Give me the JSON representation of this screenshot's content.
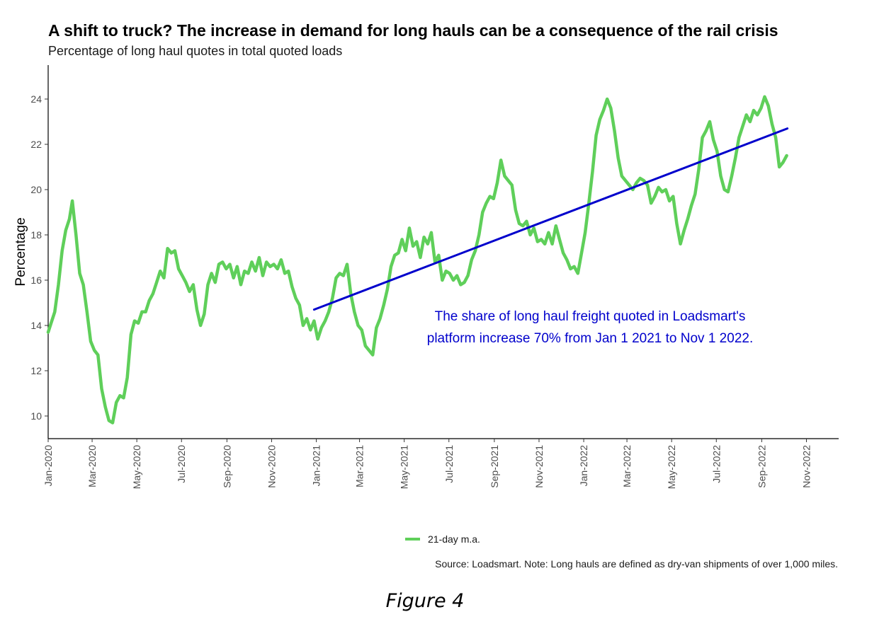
{
  "chart_data": {
    "type": "line",
    "title": "A shift to truck? The increase in demand for long hauls can be a consequence of the rail crisis",
    "subtitle": "Percentage of long haul quotes in total quoted loads",
    "xlabel": "",
    "ylabel": "Percentage",
    "ylim": [
      9,
      25.5
    ],
    "yticks": [
      10,
      12,
      14,
      16,
      18,
      20,
      22,
      24
    ],
    "xlim": [
      "2020-01-01",
      "2022-12-15"
    ],
    "xticks": [
      {
        "date": "2020-01-01",
        "label": "Jan-2020"
      },
      {
        "date": "2020-03-01",
        "label": "Mar-2020"
      },
      {
        "date": "2020-05-01",
        "label": "May-2020"
      },
      {
        "date": "2020-07-01",
        "label": "Jul-2020"
      },
      {
        "date": "2020-09-01",
        "label": "Sep-2020"
      },
      {
        "date": "2020-11-01",
        "label": "Nov-2020"
      },
      {
        "date": "2021-01-01",
        "label": "Jan-2021"
      },
      {
        "date": "2021-03-01",
        "label": "Mar-2021"
      },
      {
        "date": "2021-05-01",
        "label": "May-2021"
      },
      {
        "date": "2021-07-01",
        "label": "Jul-2021"
      },
      {
        "date": "2021-09-01",
        "label": "Sep-2021"
      },
      {
        "date": "2021-11-01",
        "label": "Nov-2021"
      },
      {
        "date": "2022-01-01",
        "label": "Jan-2022"
      },
      {
        "date": "2022-03-01",
        "label": "Mar-2022"
      },
      {
        "date": "2022-05-01",
        "label": "May-2022"
      },
      {
        "date": "2022-07-01",
        "label": "Jul-2022"
      },
      {
        "date": "2022-09-01",
        "label": "Sep-2022"
      },
      {
        "date": "2022-11-01",
        "label": "Nov-2022"
      }
    ],
    "grid": false,
    "legend_position": "bottom",
    "series": [
      {
        "name": "21-day m.a.",
        "color": "#5fcf5a",
        "points": [
          [
            "2020-01-01",
            13.7
          ],
          [
            "2020-01-05",
            14.1
          ],
          [
            "2020-01-10",
            14.6
          ],
          [
            "2020-01-15",
            15.8
          ],
          [
            "2020-01-20",
            17.3
          ],
          [
            "2020-01-25",
            18.2
          ],
          [
            "2020-01-30",
            18.7
          ],
          [
            "2020-02-03",
            19.5
          ],
          [
            "2020-02-08",
            18.0
          ],
          [
            "2020-02-13",
            16.3
          ],
          [
            "2020-02-18",
            15.8
          ],
          [
            "2020-02-23",
            14.6
          ],
          [
            "2020-02-28",
            13.3
          ],
          [
            "2020-03-04",
            12.9
          ],
          [
            "2020-03-09",
            12.7
          ],
          [
            "2020-03-14",
            11.2
          ],
          [
            "2020-03-19",
            10.4
          ],
          [
            "2020-03-24",
            9.8
          ],
          [
            "2020-03-29",
            9.7
          ],
          [
            "2020-04-03",
            10.6
          ],
          [
            "2020-04-08",
            10.9
          ],
          [
            "2020-04-13",
            10.8
          ],
          [
            "2020-04-18",
            11.7
          ],
          [
            "2020-04-23",
            13.6
          ],
          [
            "2020-04-28",
            14.2
          ],
          [
            "2020-05-03",
            14.1
          ],
          [
            "2020-05-08",
            14.6
          ],
          [
            "2020-05-13",
            14.6
          ],
          [
            "2020-05-18",
            15.1
          ],
          [
            "2020-05-23",
            15.4
          ],
          [
            "2020-05-28",
            15.9
          ],
          [
            "2020-06-02",
            16.4
          ],
          [
            "2020-06-07",
            16.1
          ],
          [
            "2020-06-12",
            17.4
          ],
          [
            "2020-06-17",
            17.2
          ],
          [
            "2020-06-22",
            17.3
          ],
          [
            "2020-06-27",
            16.5
          ],
          [
            "2020-07-02",
            16.2
          ],
          [
            "2020-07-07",
            15.9
          ],
          [
            "2020-07-12",
            15.5
          ],
          [
            "2020-07-17",
            15.8
          ],
          [
            "2020-07-22",
            14.7
          ],
          [
            "2020-07-27",
            14.0
          ],
          [
            "2020-08-01",
            14.5
          ],
          [
            "2020-08-06",
            15.8
          ],
          [
            "2020-08-11",
            16.3
          ],
          [
            "2020-08-16",
            15.9
          ],
          [
            "2020-08-21",
            16.7
          ],
          [
            "2020-08-26",
            16.8
          ],
          [
            "2020-08-31",
            16.5
          ],
          [
            "2020-09-05",
            16.7
          ],
          [
            "2020-09-10",
            16.1
          ],
          [
            "2020-09-15",
            16.6
          ],
          [
            "2020-09-20",
            15.8
          ],
          [
            "2020-09-25",
            16.4
          ],
          [
            "2020-09-30",
            16.3
          ],
          [
            "2020-10-05",
            16.8
          ],
          [
            "2020-10-10",
            16.4
          ],
          [
            "2020-10-15",
            17.0
          ],
          [
            "2020-10-20",
            16.2
          ],
          [
            "2020-10-25",
            16.8
          ],
          [
            "2020-10-30",
            16.6
          ],
          [
            "2020-11-04",
            16.7
          ],
          [
            "2020-11-09",
            16.5
          ],
          [
            "2020-11-14",
            16.9
          ],
          [
            "2020-11-19",
            16.3
          ],
          [
            "2020-11-24",
            16.4
          ],
          [
            "2020-11-29",
            15.7
          ],
          [
            "2020-12-04",
            15.2
          ],
          [
            "2020-12-09",
            14.9
          ],
          [
            "2020-12-14",
            14.0
          ],
          [
            "2020-12-19",
            14.3
          ],
          [
            "2020-12-24",
            13.8
          ],
          [
            "2020-12-29",
            14.2
          ],
          [
            "2021-01-03",
            13.4
          ],
          [
            "2021-01-08",
            13.9
          ],
          [
            "2021-01-13",
            14.2
          ],
          [
            "2021-01-18",
            14.6
          ],
          [
            "2021-01-23",
            15.2
          ],
          [
            "2021-01-28",
            16.1
          ],
          [
            "2021-02-02",
            16.3
          ],
          [
            "2021-02-07",
            16.2
          ],
          [
            "2021-02-12",
            16.7
          ],
          [
            "2021-02-17",
            15.4
          ],
          [
            "2021-02-22",
            14.6
          ],
          [
            "2021-02-27",
            14.0
          ],
          [
            "2021-03-04",
            13.8
          ],
          [
            "2021-03-09",
            13.1
          ],
          [
            "2021-03-14",
            12.9
          ],
          [
            "2021-03-19",
            12.7
          ],
          [
            "2021-03-24",
            13.9
          ],
          [
            "2021-03-29",
            14.3
          ],
          [
            "2021-04-03",
            14.9
          ],
          [
            "2021-04-08",
            15.6
          ],
          [
            "2021-04-13",
            16.6
          ],
          [
            "2021-04-18",
            17.1
          ],
          [
            "2021-04-23",
            17.2
          ],
          [
            "2021-04-28",
            17.8
          ],
          [
            "2021-05-03",
            17.3
          ],
          [
            "2021-05-08",
            18.3
          ],
          [
            "2021-05-13",
            17.5
          ],
          [
            "2021-05-18",
            17.7
          ],
          [
            "2021-05-23",
            17.0
          ],
          [
            "2021-05-28",
            17.9
          ],
          [
            "2021-06-02",
            17.6
          ],
          [
            "2021-06-07",
            18.1
          ],
          [
            "2021-06-12",
            16.8
          ],
          [
            "2021-06-17",
            17.1
          ],
          [
            "2021-06-22",
            16.0
          ],
          [
            "2021-06-27",
            16.4
          ],
          [
            "2021-07-02",
            16.3
          ],
          [
            "2021-07-07",
            16.0
          ],
          [
            "2021-07-12",
            16.2
          ],
          [
            "2021-07-17",
            15.8
          ],
          [
            "2021-07-22",
            15.9
          ],
          [
            "2021-07-27",
            16.2
          ],
          [
            "2021-08-01",
            16.9
          ],
          [
            "2021-08-06",
            17.3
          ],
          [
            "2021-08-11",
            18.0
          ],
          [
            "2021-08-16",
            19.0
          ],
          [
            "2021-08-21",
            19.4
          ],
          [
            "2021-08-26",
            19.7
          ],
          [
            "2021-08-31",
            19.6
          ],
          [
            "2021-09-05",
            20.3
          ],
          [
            "2021-09-10",
            21.3
          ],
          [
            "2021-09-15",
            20.6
          ],
          [
            "2021-09-20",
            20.4
          ],
          [
            "2021-09-25",
            20.2
          ],
          [
            "2021-09-30",
            19.1
          ],
          [
            "2021-10-05",
            18.5
          ],
          [
            "2021-10-10",
            18.4
          ],
          [
            "2021-10-15",
            18.6
          ],
          [
            "2021-10-20",
            18.0
          ],
          [
            "2021-10-25",
            18.3
          ],
          [
            "2021-10-30",
            17.7
          ],
          [
            "2021-11-04",
            17.8
          ],
          [
            "2021-11-09",
            17.6
          ],
          [
            "2021-11-14",
            18.1
          ],
          [
            "2021-11-19",
            17.6
          ],
          [
            "2021-11-24",
            18.4
          ],
          [
            "2021-11-29",
            17.8
          ],
          [
            "2021-12-04",
            17.2
          ],
          [
            "2021-12-09",
            16.9
          ],
          [
            "2021-12-14",
            16.5
          ],
          [
            "2021-12-19",
            16.6
          ],
          [
            "2021-12-24",
            16.3
          ],
          [
            "2021-12-29",
            17.2
          ],
          [
            "2022-01-03",
            18.1
          ],
          [
            "2022-01-08",
            19.4
          ],
          [
            "2022-01-13",
            20.8
          ],
          [
            "2022-01-18",
            22.4
          ],
          [
            "2022-01-23",
            23.1
          ],
          [
            "2022-01-28",
            23.5
          ],
          [
            "2022-02-02",
            24.0
          ],
          [
            "2022-02-07",
            23.6
          ],
          [
            "2022-02-12",
            22.6
          ],
          [
            "2022-02-17",
            21.4
          ],
          [
            "2022-02-22",
            20.6
          ],
          [
            "2022-02-27",
            20.4
          ],
          [
            "2022-03-04",
            20.2
          ],
          [
            "2022-03-09",
            20.0
          ],
          [
            "2022-03-14",
            20.3
          ],
          [
            "2022-03-19",
            20.5
          ],
          [
            "2022-03-24",
            20.4
          ],
          [
            "2022-03-29",
            20.2
          ],
          [
            "2022-04-03",
            19.4
          ],
          [
            "2022-04-08",
            19.7
          ],
          [
            "2022-04-13",
            20.1
          ],
          [
            "2022-04-18",
            19.9
          ],
          [
            "2022-04-23",
            20.0
          ],
          [
            "2022-04-28",
            19.5
          ],
          [
            "2022-05-03",
            19.7
          ],
          [
            "2022-05-08",
            18.5
          ],
          [
            "2022-05-13",
            17.6
          ],
          [
            "2022-05-18",
            18.2
          ],
          [
            "2022-05-23",
            18.7
          ],
          [
            "2022-05-28",
            19.3
          ],
          [
            "2022-06-02",
            19.8
          ],
          [
            "2022-06-07",
            20.9
          ],
          [
            "2022-06-12",
            22.3
          ],
          [
            "2022-06-17",
            22.6
          ],
          [
            "2022-06-22",
            23.0
          ],
          [
            "2022-06-27",
            22.2
          ],
          [
            "2022-07-02",
            21.7
          ],
          [
            "2022-07-07",
            20.6
          ],
          [
            "2022-07-12",
            20.0
          ],
          [
            "2022-07-17",
            19.9
          ],
          [
            "2022-07-22",
            20.6
          ],
          [
            "2022-07-27",
            21.4
          ],
          [
            "2022-08-01",
            22.3
          ],
          [
            "2022-08-06",
            22.8
          ],
          [
            "2022-08-11",
            23.3
          ],
          [
            "2022-08-16",
            23.0
          ],
          [
            "2022-08-21",
            23.5
          ],
          [
            "2022-08-26",
            23.3
          ],
          [
            "2022-08-31",
            23.6
          ],
          [
            "2022-09-05",
            24.1
          ],
          [
            "2022-09-10",
            23.7
          ],
          [
            "2022-09-15",
            22.9
          ],
          [
            "2022-09-20",
            22.3
          ],
          [
            "2022-09-25",
            21.0
          ],
          [
            "2022-09-30",
            21.2
          ],
          [
            "2022-10-05",
            21.5
          ]
        ]
      },
      {
        "color": "#0000cc",
        "points": [
          [
            "2020-12-29",
            14.7
          ],
          [
            "2022-10-06",
            22.7
          ]
        ]
      }
    ],
    "annotations": [
      {
        "text": "The share of long haul freight quoted in Loadsmart's",
        "color": "#0000cc"
      },
      {
        "text": "platform increase 70% from Jan 1 2021 to Nov 1 2022.",
        "color": "#0000cc"
      }
    ],
    "legend": {
      "label": "21-day m.a."
    },
    "source": "Source: Loadsmart. Note: Long hauls are defined as dry-van shipments of over 1,000 miles."
  },
  "caption": "Figure 4"
}
